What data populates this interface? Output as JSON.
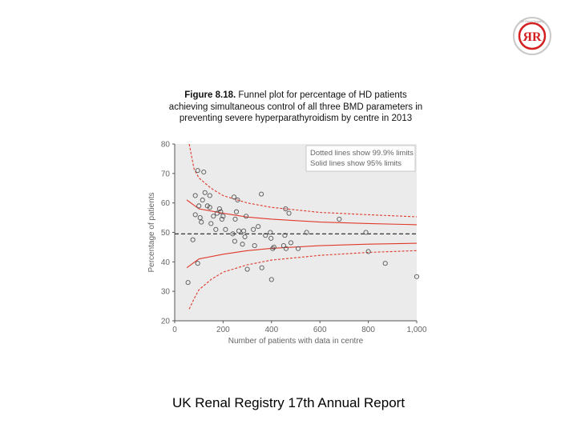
{
  "logo": {
    "text": "ЯR",
    "ring_text": "UK Renal Registry"
  },
  "caption": {
    "figure_label": "Figure 8.18.",
    "text": "Funnel plot for percentage of HD patients achieving simultaneous control of all three BMD parameters in preventing severe hyperparathyroidism by centre in 2013"
  },
  "footer": {
    "text": "UK Renal Registry 17th Annual Report"
  },
  "colors": {
    "limits": "#e0392b",
    "points": "#555555",
    "axis_text": "#666666",
    "mean": "#333333"
  },
  "chart_data": {
    "type": "scatter",
    "xlabel": "Number of patients with data in centre",
    "ylabel": "Percentage of patients",
    "xlim": [
      0,
      1000
    ],
    "ylim": [
      20,
      80
    ],
    "xticks": [
      0,
      200,
      400,
      600,
      800,
      1000
    ],
    "xtick_labels": [
      "0",
      "200",
      "400",
      "600",
      "800",
      "1,000"
    ],
    "yticks": [
      20,
      30,
      40,
      50,
      60,
      70,
      80
    ],
    "legend": [
      "Dotted lines show 99.9% limits",
      "Solid lines show 95% limits"
    ],
    "legend_position": "top-right",
    "mean": 49.5,
    "points": [
      [
        55,
        33
      ],
      [
        75,
        47.5
      ],
      [
        85,
        56
      ],
      [
        85,
        62.5
      ],
      [
        95,
        71
      ],
      [
        95,
        39.5
      ],
      [
        100,
        59
      ],
      [
        105,
        55
      ],
      [
        110,
        53.5
      ],
      [
        115,
        61
      ],
      [
        120,
        70.5
      ],
      [
        125,
        63.5
      ],
      [
        135,
        59
      ],
      [
        145,
        58.5
      ],
      [
        145,
        62.5
      ],
      [
        150,
        53
      ],
      [
        160,
        55.5
      ],
      [
        170,
        51
      ],
      [
        175,
        56.5
      ],
      [
        185,
        58
      ],
      [
        190,
        57
      ],
      [
        195,
        54.5
      ],
      [
        200,
        55.5
      ],
      [
        210,
        51
      ],
      [
        240,
        49.5
      ],
      [
        245,
        62
      ],
      [
        248,
        47
      ],
      [
        250,
        54.5
      ],
      [
        255,
        57
      ],
      [
        260,
        61
      ],
      [
        265,
        50.5
      ],
      [
        280,
        46
      ],
      [
        285,
        50.5
      ],
      [
        290,
        48.5
      ],
      [
        295,
        55.5
      ],
      [
        300,
        37.5
      ],
      [
        325,
        51
      ],
      [
        330,
        45.5
      ],
      [
        345,
        52
      ],
      [
        358,
        63
      ],
      [
        360,
        38
      ],
      [
        375,
        49
      ],
      [
        395,
        50
      ],
      [
        398,
        48
      ],
      [
        400,
        34
      ],
      [
        405,
        44.5
      ],
      [
        410,
        45
      ],
      [
        450,
        45.5
      ],
      [
        455,
        49
      ],
      [
        458,
        58
      ],
      [
        460,
        44.5
      ],
      [
        472,
        56.5
      ],
      [
        480,
        46.5
      ],
      [
        510,
        44.5
      ],
      [
        545,
        50
      ],
      [
        680,
        54.5
      ],
      [
        790,
        50
      ],
      [
        800,
        43.5
      ],
      [
        870,
        39.5
      ],
      [
        1000,
        35
      ]
    ],
    "limits": {
      "solid_upper": [
        [
          50,
          61
        ],
        [
          100,
          58
        ],
        [
          200,
          56.5
        ],
        [
          300,
          55.2
        ],
        [
          400,
          54.5
        ],
        [
          600,
          53.5
        ],
        [
          800,
          53
        ],
        [
          1000,
          52.6
        ]
      ],
      "solid_lower": [
        [
          50,
          38
        ],
        [
          100,
          41
        ],
        [
          200,
          42.6
        ],
        [
          300,
          43.8
        ],
        [
          400,
          44.6
        ],
        [
          600,
          45.5
        ],
        [
          800,
          46
        ],
        [
          1000,
          46.3
        ]
      ],
      "dotted_upper": [
        [
          60,
          80
        ],
        [
          80,
          71.5
        ],
        [
          100,
          68.5
        ],
        [
          150,
          65
        ],
        [
          200,
          62.5
        ],
        [
          300,
          60
        ],
        [
          400,
          58.5
        ],
        [
          600,
          56.8
        ],
        [
          800,
          56
        ],
        [
          1000,
          55.3
        ]
      ],
      "dotted_lower": [
        [
          60,
          24
        ],
        [
          80,
          27.5
        ],
        [
          100,
          30.5
        ],
        [
          150,
          34
        ],
        [
          200,
          36.5
        ],
        [
          300,
          39
        ],
        [
          400,
          40.6
        ],
        [
          600,
          42.2
        ],
        [
          800,
          43.2
        ],
        [
          1000,
          43.8
        ]
      ]
    }
  }
}
